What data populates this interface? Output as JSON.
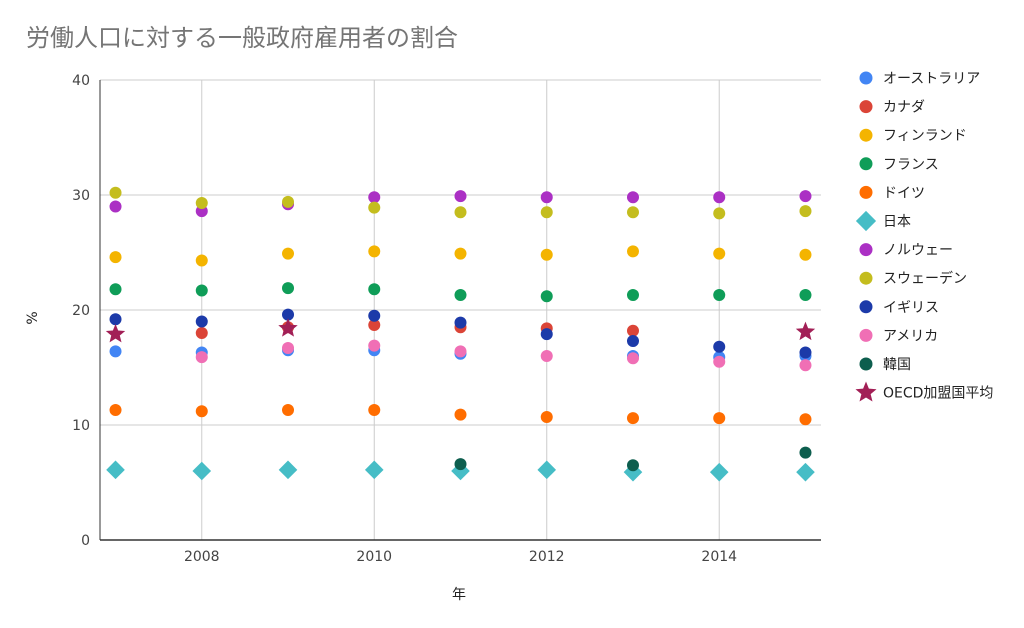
{
  "chart_data": {
    "type": "scatter",
    "title": "労働人口に対する一般政府雇用者の割合",
    "xlabel": "年",
    "ylabel": "%",
    "xlim": [
      2006.82,
      2015.18
    ],
    "ylim": [
      0,
      40
    ],
    "xticks": [
      "2008",
      "2010",
      "2012",
      "2014"
    ],
    "yticks": [
      "0",
      "10",
      "20",
      "30",
      "40"
    ],
    "grid": true,
    "legend_position": "right",
    "x": [
      2007,
      2008,
      2009,
      2010,
      2011,
      2012,
      2013,
      2014,
      2015
    ],
    "series": [
      {
        "name": "オーストラリア",
        "color": "#4285f4",
        "marker": "circle",
        "values": [
          16.4,
          16.3,
          16.5,
          16.5,
          16.2,
          null,
          16.0,
          15.9,
          16.0
        ]
      },
      {
        "name": "カナダ",
        "color": "#db4437",
        "marker": "circle",
        "values": [
          null,
          18.0,
          18.5,
          18.7,
          18.5,
          18.4,
          18.2,
          null,
          null
        ]
      },
      {
        "name": "フィンランド",
        "color": "#f4b400",
        "marker": "circle",
        "values": [
          24.6,
          24.3,
          24.9,
          25.1,
          24.9,
          24.8,
          25.1,
          24.9,
          24.8
        ]
      },
      {
        "name": "フランス",
        "color": "#0f9d58",
        "marker": "circle",
        "values": [
          21.8,
          21.7,
          21.9,
          21.8,
          21.3,
          21.2,
          21.3,
          21.3,
          21.3
        ]
      },
      {
        "name": "ドイツ",
        "color": "#ff6d00",
        "marker": "circle",
        "values": [
          11.3,
          11.2,
          11.3,
          11.3,
          10.9,
          10.7,
          10.6,
          10.6,
          10.5
        ]
      },
      {
        "name": "日本",
        "color": "#46bdc6",
        "marker": "diamond",
        "values": [
          6.1,
          6.0,
          6.1,
          6.1,
          6.0,
          6.1,
          5.9,
          5.9,
          5.9
        ]
      },
      {
        "name": "ノルウェー",
        "color": "#ab30c4",
        "marker": "circle",
        "values": [
          29.0,
          28.6,
          29.2,
          29.8,
          29.9,
          29.8,
          29.8,
          29.8,
          29.9
        ]
      },
      {
        "name": "スウェーデン",
        "color": "#c4bd1e",
        "marker": "circle",
        "values": [
          30.2,
          29.3,
          29.4,
          28.9,
          28.5,
          28.5,
          28.5,
          28.4,
          28.6
        ]
      },
      {
        "name": "イギリス",
        "color": "#1c3aa9",
        "marker": "circle",
        "values": [
          19.2,
          19.0,
          19.6,
          19.5,
          18.9,
          17.9,
          17.3,
          16.8,
          16.3
        ]
      },
      {
        "name": "アメリカ",
        "color": "#f06fb5",
        "marker": "circle",
        "values": [
          null,
          15.9,
          16.7,
          16.9,
          16.4,
          16.0,
          15.8,
          15.5,
          15.2
        ]
      },
      {
        "name": "韓国",
        "color": "#0d5e4e",
        "marker": "circle",
        "values": [
          null,
          null,
          null,
          null,
          6.6,
          null,
          6.5,
          null,
          7.6
        ]
      },
      {
        "name": "OECD加盟国平均",
        "color": "#a21f56",
        "marker": "star",
        "values": [
          17.9,
          null,
          18.4,
          null,
          null,
          null,
          null,
          null,
          18.1
        ]
      }
    ]
  }
}
